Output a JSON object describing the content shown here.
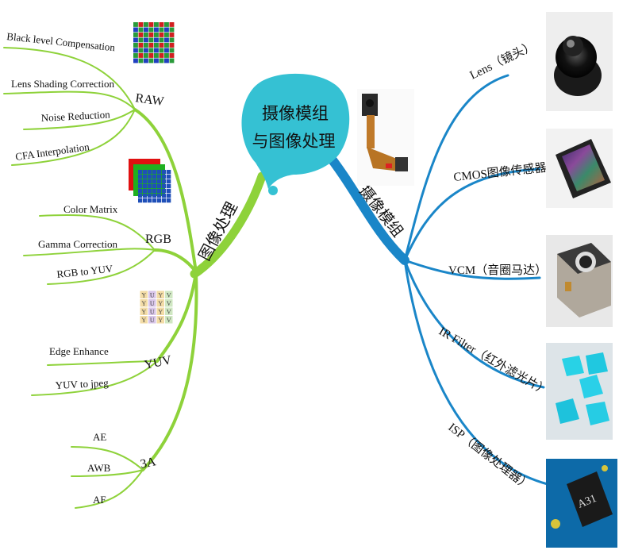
{
  "center": {
    "line1": "摄像模组",
    "line2": "与图像处理"
  },
  "left_branch": {
    "label": "图像处理",
    "groups": [
      {
        "name": "RAW",
        "items": [
          "Black level Compensation",
          "Lens Shading Correction",
          "Noise Reduction",
          "CFA Interpolation"
        ]
      },
      {
        "name": "RGB",
        "items": [
          "Color Matrix",
          "Gamma Correction",
          "RGB to YUV"
        ]
      },
      {
        "name": "YUV",
        "items": [
          "Edge Enhance",
          "YUV to jpeg"
        ]
      },
      {
        "name": "3A",
        "items": [
          "AE",
          "AWB",
          "AF"
        ]
      }
    ]
  },
  "right_branch": {
    "label": "摄像模组",
    "items": [
      "Lens（镜头）",
      "CMOS图像传感器",
      "VCM（音圈马达）",
      "IR Filter（红外滤光片）",
      "ISP（图像处理器）"
    ]
  },
  "yuv_grid": [
    [
      "Y",
      "U",
      "Y",
      "V"
    ],
    [
      "Y",
      "U",
      "Y",
      "V"
    ],
    [
      "Y",
      "U",
      "Y",
      "V"
    ],
    [
      "Y",
      "U",
      "Y",
      "V"
    ]
  ],
  "isp_chip_text": "A31",
  "colors": {
    "left_branch": "#8ed23a",
    "right_branch": "#1a86c8",
    "center_bubble": "#35c1d3"
  }
}
